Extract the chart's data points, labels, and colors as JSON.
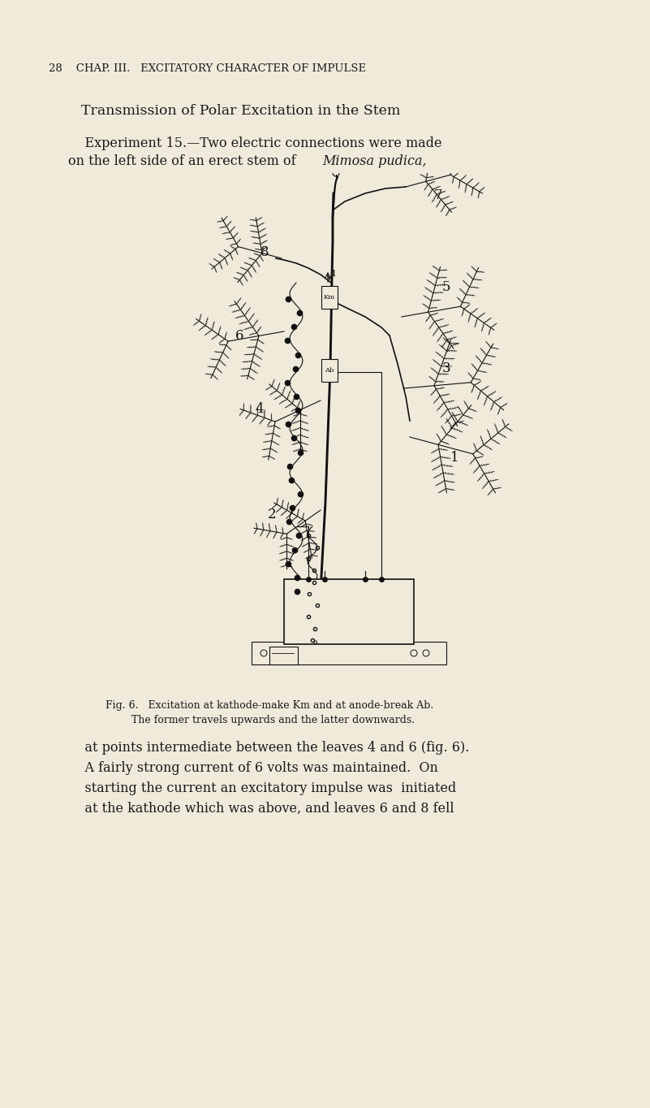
{
  "bg_color": "#f0eadb",
  "page_width": 8.01,
  "page_height": 13.64,
  "dpi": 100,
  "header_text": "28    CHAP. III.   EXCITATORY CHARACTER OF IMPULSE",
  "title_text": "Transmission of Polar Excitation in the Stem",
  "body_text_1a": "    Experiment 15.—Two electric connections were made",
  "body_text_1b": "on the left side of an erect stem of ",
  "body_text_1c": "Mimosa pudica,",
  "caption_text": "Fig. 6.   Excitation at kathode-make Km and at anode-break Ab.\n        The former travels upwards and the latter downwards.",
  "body_text_2": "    at points intermediate between the leaves 4 and 6 (fig. 6).\n    A fairly strong current of 6 volts was maintained.  On\n    starting the current an excitatory impulse was  initiated\n    at the kathode which was above, and leaves 6 and 8 fell",
  "text_color": "#1a1a1a",
  "header_fontsize": 9.5,
  "title_fontsize": 12.5,
  "body_fontsize": 11.5,
  "caption_fontsize": 9.0
}
